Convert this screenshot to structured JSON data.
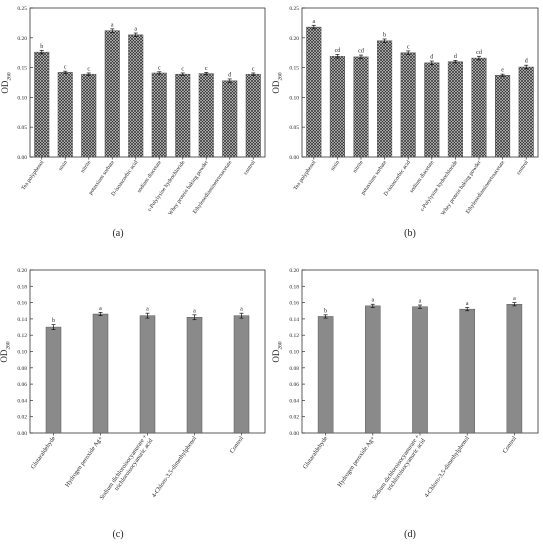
{
  "style": {
    "bar_color": "#8a8a8a",
    "hatch_color": "#2b2b2b",
    "axis_color": "#333333",
    "text_color": "#222222"
  },
  "chart_data": [
    {
      "type": "bar",
      "panel_label": "(a)",
      "ylabel": "OD",
      "ylabel_sub": "260",
      "ylim": [
        0,
        0.25
      ],
      "yticks": [
        "0.00",
        "0.05",
        "0.10",
        "0.15",
        "0.20",
        "0.25"
      ],
      "pattern": "crosshatch",
      "categories": [
        "Tea polyphenol",
        "nisin",
        "nitrite",
        "potassium sorbate",
        "D-isoascorbic acid",
        "sodium diacetate",
        "ε-Polylysine hydrochloride",
        "Whey protein baking powder",
        "Ethylenediaminetetraacetate",
        "control"
      ],
      "values": [
        0.176,
        0.142,
        0.139,
        0.212,
        0.205,
        0.141,
        0.139,
        0.14,
        0.128,
        0.139
      ],
      "errors": [
        0.003,
        0.002,
        0.002,
        0.003,
        0.003,
        0.002,
        0.002,
        0.002,
        0.003,
        0.002
      ],
      "letters": [
        "b",
        "c",
        "c",
        "a",
        "a",
        "c",
        "c",
        "c",
        "d",
        "c"
      ]
    },
    {
      "type": "bar",
      "panel_label": "(b)",
      "ylabel": "OD",
      "ylabel_sub": "260",
      "ylim": [
        0,
        0.25
      ],
      "yticks": [
        "0.00",
        "0.05",
        "0.10",
        "0.15",
        "0.20",
        "0.25"
      ],
      "pattern": "crosshatch",
      "categories": [
        "Tea polyphenol",
        "nisin",
        "nitrite",
        "potassium sorbate",
        "D-isoascorbic acid",
        "sodium diacetate",
        "ε-Polylysine hydrochloride",
        "Whey protein baking powder",
        "Ethylenediaminetetraacetate",
        "control"
      ],
      "values": [
        0.218,
        0.169,
        0.168,
        0.195,
        0.175,
        0.158,
        0.16,
        0.166,
        0.137,
        0.151
      ],
      "errors": [
        0.003,
        0.003,
        0.003,
        0.003,
        0.003,
        0.003,
        0.002,
        0.003,
        0.002,
        0.003
      ],
      "letters": [
        "a",
        "cd",
        "cd",
        "b",
        "c",
        "d",
        "d",
        "cd",
        "e",
        "d"
      ]
    },
    {
      "type": "bar",
      "panel_label": "(c)",
      "ylabel": "OD",
      "ylabel_sub": "260",
      "ylim": [
        0,
        0.2
      ],
      "yticks": [
        "0.00",
        "0.02",
        "0.04",
        "0.06",
        "0.08",
        "0.10",
        "0.12",
        "0.14",
        "0.16",
        "0.18",
        "0.20"
      ],
      "pattern": "solid",
      "categories": [
        "Glutaraldehyde",
        "Hydrogen peroxide Ag+",
        "Sodium dichloroisocyanurate + trichloroisocyanuric acid",
        "4-Chloro-3,5-dimethylphenol",
        "Control"
      ],
      "values": [
        0.13,
        0.146,
        0.144,
        0.142,
        0.144
      ],
      "errors": [
        0.003,
        0.002,
        0.003,
        0.003,
        0.003
      ],
      "letters": [
        "b",
        "a",
        "a",
        "a",
        "a"
      ]
    },
    {
      "type": "bar",
      "panel_label": "(d)",
      "ylabel": "OD",
      "ylabel_sub": "260",
      "ylim": [
        0,
        0.2
      ],
      "yticks": [
        "0.00",
        "0.02",
        "0.04",
        "0.06",
        "0.08",
        "0.10",
        "0.12",
        "0.14",
        "0.16",
        "0.18",
        "0.20"
      ],
      "pattern": "solid",
      "categories": [
        "Glutaraldehyde",
        "Hydrogen peroxide Ag+",
        "Sodium dichloroisocyanurate + trichloroisocyanuric acid",
        "4-Chloro-3,5-dimethylphenol",
        "Control"
      ],
      "values": [
        0.143,
        0.156,
        0.155,
        0.152,
        0.158
      ],
      "errors": [
        0.002,
        0.002,
        0.002,
        0.002,
        0.002
      ],
      "letters": [
        "b",
        "a",
        "a",
        "a",
        "a"
      ]
    }
  ]
}
